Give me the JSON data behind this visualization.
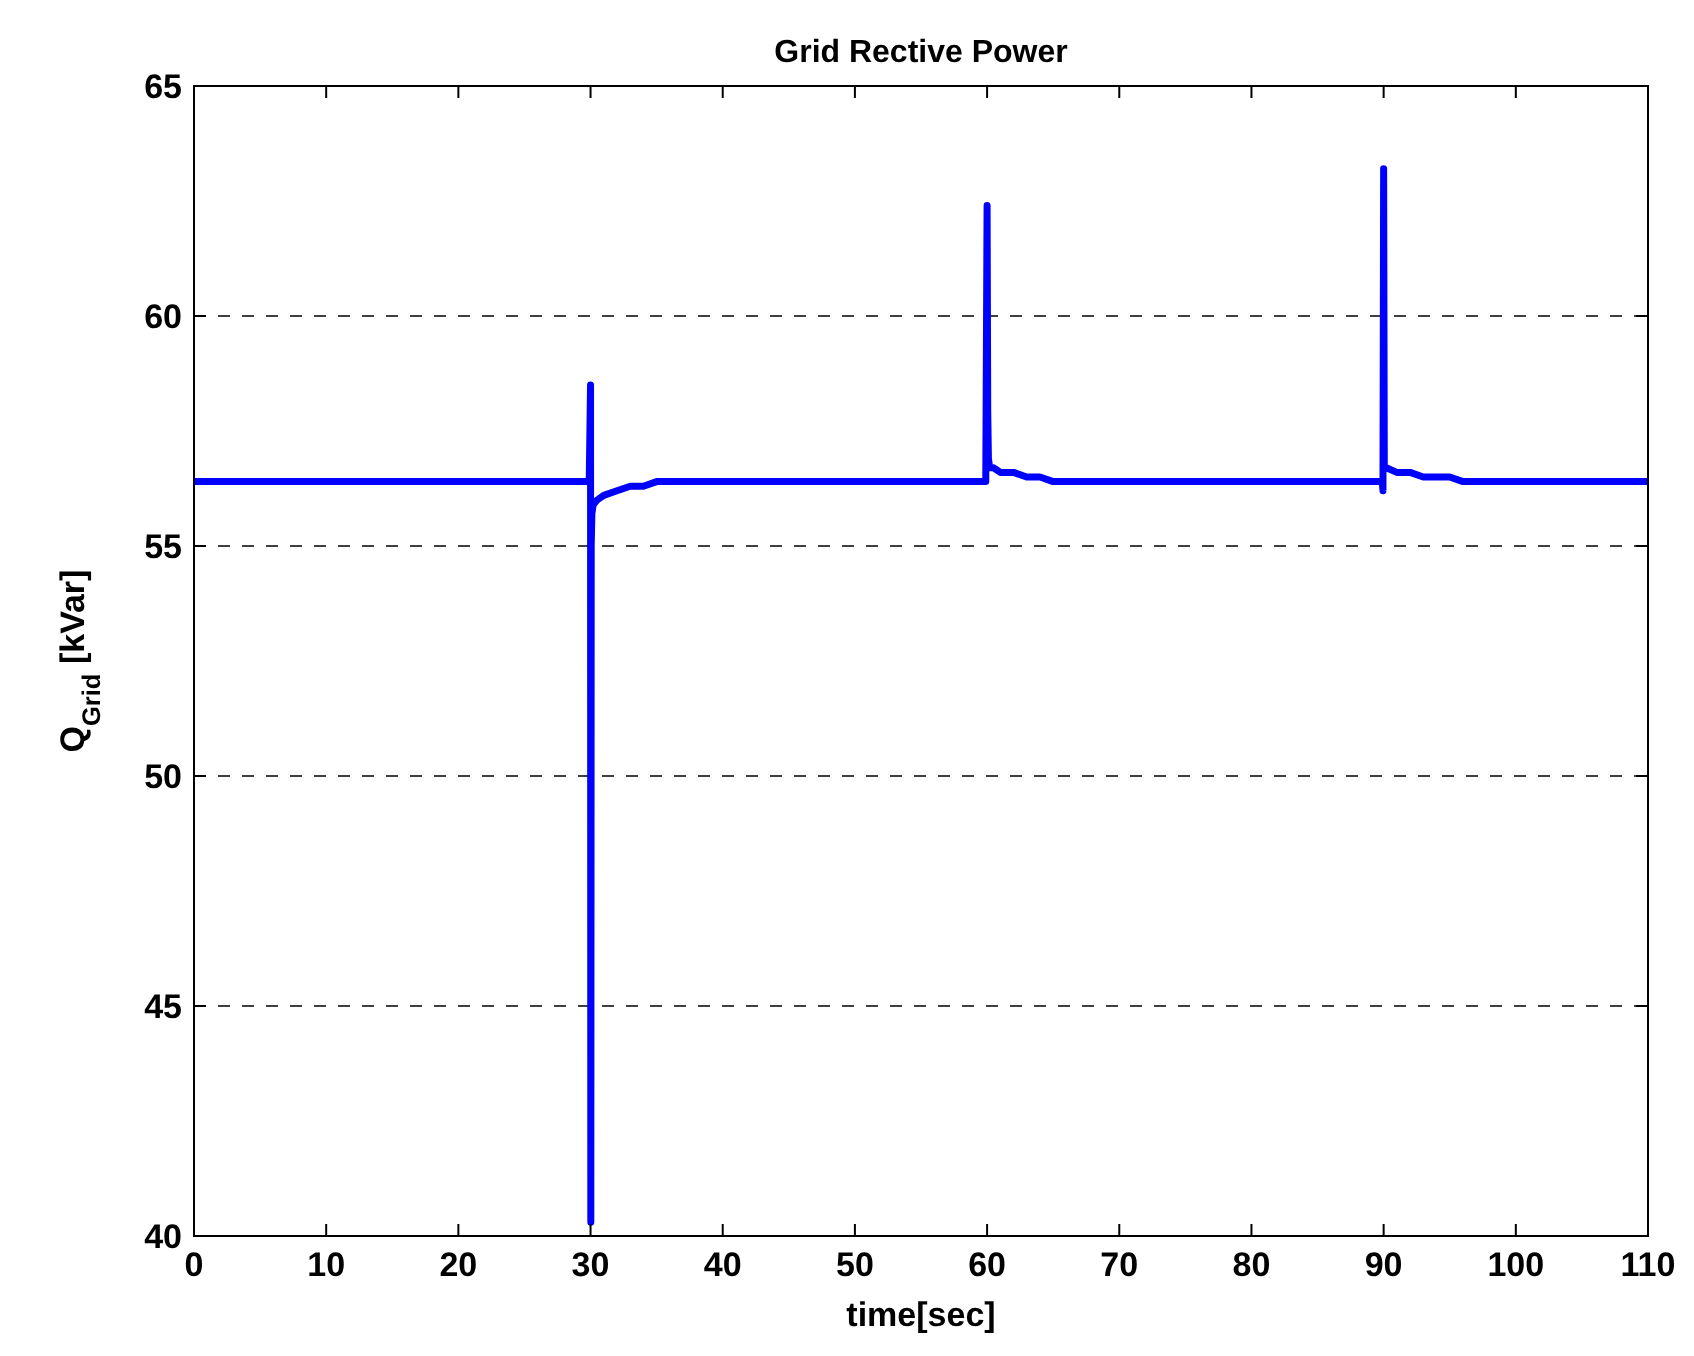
{
  "chart_data": {
    "type": "line",
    "title": "Grid Rective Power",
    "xlabel": "time[sec]",
    "ylabel": "Q$_{Grid}$ [kVar]",
    "xlim": [
      0,
      110
    ],
    "ylim": [
      40,
      65
    ],
    "xticks": [
      0,
      10,
      20,
      30,
      40,
      50,
      60,
      70,
      80,
      90,
      100,
      110
    ],
    "yticks": [
      40,
      45,
      50,
      55,
      60,
      65
    ],
    "grid": "y",
    "line_style": "solid",
    "marker": "none",
    "x": [
      0,
      29.9,
      30,
      30.02,
      30.05,
      30.1,
      30.2,
      30.5,
      31,
      32,
      33,
      34,
      35,
      59.9,
      60,
      60.05,
      60.1,
      60.2,
      60.5,
      61,
      62,
      63,
      64,
      65,
      89.9,
      89.95,
      90,
      90.05,
      90.2,
      91,
      92,
      93,
      94,
      95,
      96,
      110
    ],
    "series": [
      {
        "color": "#0000ff",
        "values": [
          56.4,
          56.4,
          58.5,
          40.3,
          55.0,
          55.7,
          55.9,
          56.0,
          56.1,
          56.2,
          56.3,
          56.3,
          56.4,
          56.4,
          62.4,
          57.9,
          56.9,
          56.7,
          56.7,
          56.6,
          56.6,
          56.5,
          56.5,
          56.4,
          56.4,
          56.2,
          63.2,
          56.7,
          56.7,
          56.6,
          56.6,
          56.5,
          56.5,
          56.5,
          56.4,
          56.4
        ]
      }
    ]
  }
}
